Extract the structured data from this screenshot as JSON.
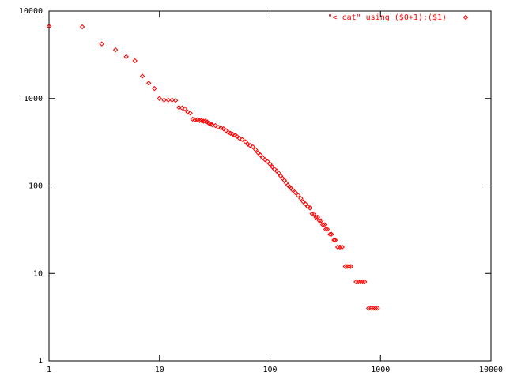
{
  "chart_data": {
    "type": "scatter",
    "xlog": true,
    "ylog": true,
    "xlim": [
      1,
      10000
    ],
    "ylim": [
      1,
      10000
    ],
    "xticks": [
      1,
      10,
      100,
      1000,
      10000
    ],
    "yticks": [
      1,
      10,
      100,
      1000,
      10000
    ],
    "legend": "top-right",
    "series": [
      {
        "name": "\"< cat\" using ($0+1):($1)",
        "color": "#ff0000",
        "x": [
          1,
          2,
          3,
          4,
          5,
          6,
          7,
          8,
          9,
          10,
          11,
          12,
          13,
          14,
          15,
          16,
          17,
          18,
          19,
          20,
          21,
          22,
          23,
          24,
          25,
          26,
          27,
          28,
          29,
          30,
          32,
          34,
          36,
          38,
          40,
          42,
          44,
          46,
          48,
          50,
          53,
          56,
          60,
          63,
          66,
          70,
          74,
          78,
          82,
          86,
          90,
          95,
          100,
          105,
          110,
          115,
          120,
          125,
          130,
          135,
          140,
          145,
          150,
          155,
          160,
          170,
          180,
          190,
          200,
          210,
          220,
          230,
          240,
          250,
          260,
          270,
          280,
          290,
          300,
          310,
          320,
          330,
          350,
          360,
          380,
          390,
          410,
          430,
          450,
          480,
          500,
          520,
          540,
          600,
          630,
          660,
          690,
          720,
          780,
          820,
          860,
          900,
          940
        ],
        "values": [
          6700,
          6600,
          4200,
          3600,
          3000,
          2700,
          1800,
          1500,
          1300,
          1000,
          960,
          960,
          960,
          950,
          790,
          780,
          760,
          700,
          680,
          580,
          570,
          570,
          560,
          560,
          550,
          550,
          540,
          520,
          510,
          500,
          490,
          470,
          460,
          450,
          430,
          410,
          400,
          390,
          380,
          370,
          350,
          340,
          320,
          300,
          290,
          280,
          260,
          240,
          225,
          210,
          200,
          190,
          178,
          165,
          155,
          148,
          140,
          130,
          122,
          116,
          108,
          102,
          98,
          94,
          90,
          84,
          78,
          72,
          66,
          62,
          58,
          56,
          48,
          48,
          44,
          44,
          40,
          40,
          36,
          36,
          32,
          32,
          28,
          28,
          24,
          24,
          20,
          20,
          20,
          12,
          12,
          12,
          12,
          8,
          8,
          8,
          8,
          8,
          4,
          4,
          4,
          4,
          4
        ]
      }
    ]
  }
}
